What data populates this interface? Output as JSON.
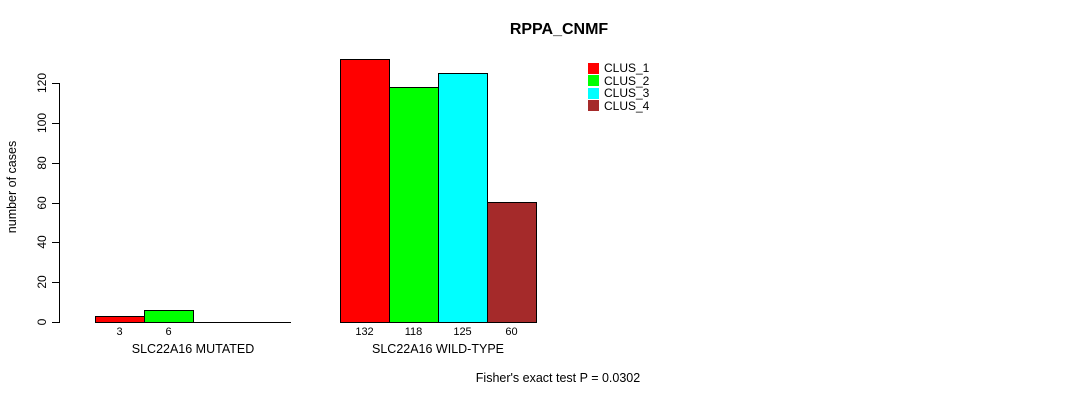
{
  "figure": {
    "title": "RPPA_CNMF",
    "footer": "Fisher's exact test P = 0.0302"
  },
  "chart_data": {
    "type": "bar",
    "title": "RPPA_CNMF",
    "xlabel": "",
    "ylabel": "number of cases",
    "ylim": [
      0,
      132
    ],
    "yticks": [
      0,
      20,
      40,
      60,
      80,
      100,
      120
    ],
    "grid": false,
    "legend_position": "top-right-outside",
    "background": "#ffffff",
    "axis_color": "#000000",
    "series": [
      {
        "name": "CLUS_1",
        "color": "#ff0000"
      },
      {
        "name": "CLUS_2",
        "color": "#00ff00"
      },
      {
        "name": "CLUS_3",
        "color": "#00ffff"
      },
      {
        "name": "CLUS_4",
        "color": "#a52a2a"
      }
    ],
    "categories": [
      "SLC22A16 MUTATED",
      "SLC22A16 WILD-TYPE"
    ],
    "groups": [
      {
        "label": "SLC22A16 MUTATED",
        "values": [
          3,
          6,
          0,
          0
        ],
        "bar_labels": [
          "3",
          "6",
          "",
          ""
        ]
      },
      {
        "label": "SLC22A16 WILD-TYPE",
        "values": [
          132,
          118,
          125,
          60
        ],
        "bar_labels": [
          "132",
          "118",
          "125",
          "60"
        ]
      }
    ],
    "annotation": "Fisher's exact test P = 0.0302"
  }
}
